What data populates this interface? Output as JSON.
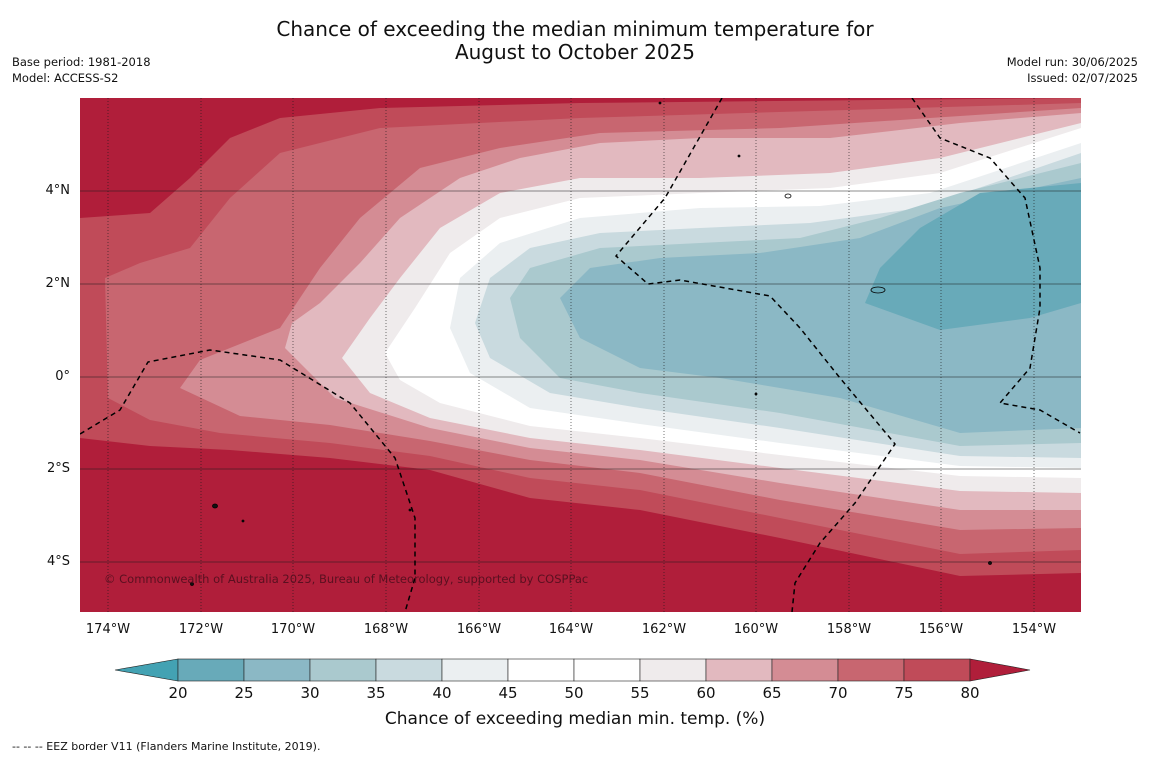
{
  "title": {
    "line1": "Chance of exceeding the median minimum temperature for",
    "line2": "August to October 2025"
  },
  "meta_left": {
    "base_period": "Base period: 1981-2018",
    "model": "Model: ACCESS-S2"
  },
  "meta_right": {
    "model_run": "Model run: 30/06/2025",
    "issued": "Issued: 02/07/2025"
  },
  "lat_labels": [
    "4°N",
    "2°N",
    "0°",
    "2°S",
    "4°S"
  ],
  "lon_labels": [
    "174°W",
    "172°W",
    "170°W",
    "168°W",
    "166°W",
    "164°W",
    "162°W",
    "160°W",
    "158°W",
    "156°W",
    "154°W"
  ],
  "copyright": "© Commonwealth of Australia 2025, Bureau of Meteorology, supported by COSPPac",
  "colorbar": {
    "ticks": [
      "20",
      "25",
      "30",
      "35",
      "40",
      "45",
      "50",
      "55",
      "60",
      "65",
      "70",
      "75",
      "80"
    ],
    "colors": [
      "#43a2b3",
      "#68aab9",
      "#8bb8c5",
      "#aac9ce",
      "#c9dadf",
      "#ebeff1",
      "#ffffff",
      "#ffffff",
      "#efebec",
      "#e2b9bf",
      "#d48c94",
      "#c86670",
      "#c04b59",
      "#b01e3a"
    ],
    "title": "Chance of exceeding median min. temp. (%)"
  },
  "footnote": "--  --  -- EEZ border V11 (Flanders Marine Institute, 2019)."
}
